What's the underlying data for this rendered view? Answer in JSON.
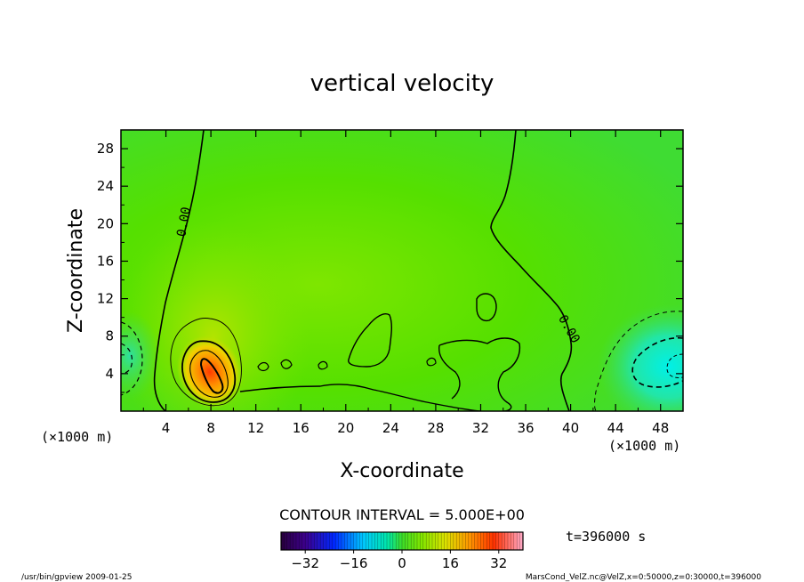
{
  "chart_data": {
    "type": "contour",
    "title": "vertical velocity",
    "xlabel": "X-coordinate",
    "ylabel": "Z-coordinate",
    "x_unit": "(×1000 m)",
    "y_unit": "(×1000 m)",
    "xlim": [
      0,
      50
    ],
    "ylim": [
      0,
      30
    ],
    "x_ticks": [
      4,
      8,
      12,
      16,
      20,
      24,
      28,
      32,
      36,
      40,
      44,
      48
    ],
    "y_ticks": [
      4,
      8,
      12,
      16,
      20,
      24,
      28
    ],
    "contour_interval": "CONTOUR INTERVAL = 5.000E+00",
    "contour_labels": [
      "0.00",
      "0.00"
    ],
    "colorbar": {
      "ticks": [
        -32,
        -16,
        0,
        16,
        32
      ],
      "range": [
        -40,
        40
      ]
    },
    "features": [
      {
        "kind": "updraft-maximum",
        "x": 8.2,
        "z": 4.2,
        "value": 22
      },
      {
        "kind": "downdraft-minimum",
        "x": 48,
        "z": 4.2,
        "value": -18
      },
      {
        "kind": "downdraft-minimum",
        "x": 0.8,
        "z": 5.8,
        "value": -9
      }
    ],
    "time_label": "t=396000 s",
    "footer_left": "/usr/bin/gpview   2009-01-25",
    "footer_right": "MarsCond_VelZ.nc@VelZ,x=0:50000,z=0:30000,t=396000"
  }
}
